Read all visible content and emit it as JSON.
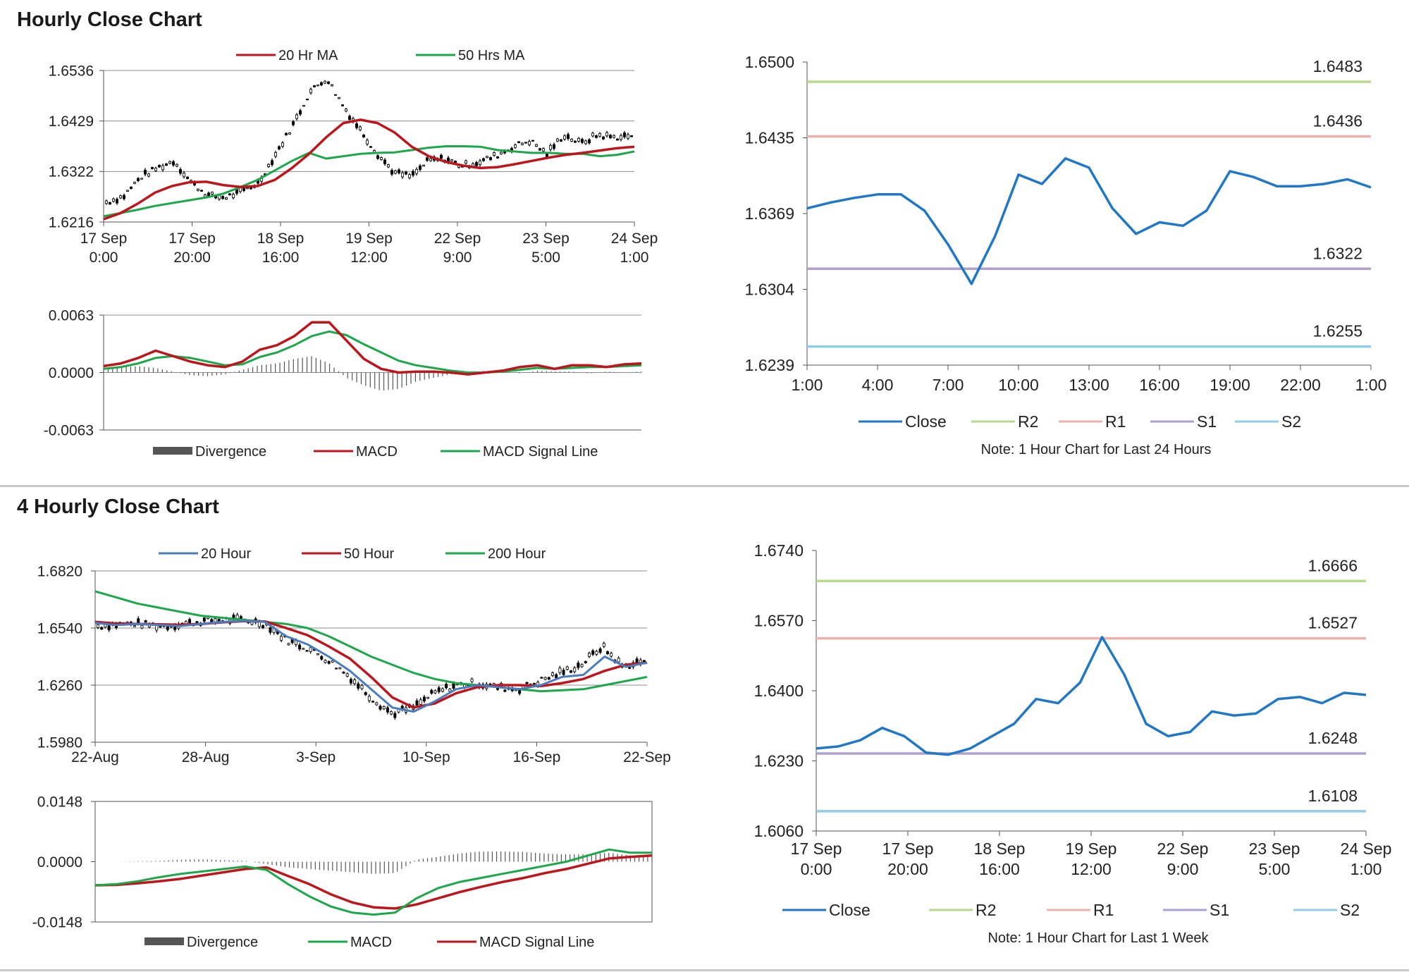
{
  "sections": [
    {
      "title": "Hourly Close Chart"
    },
    {
      "title": "4 Hourly Close Chart"
    }
  ],
  "chart_data": [
    {
      "id": "hourly-price",
      "type": "line",
      "subtype": "candlestick-with-moving-averages",
      "title": "",
      "ylim": [
        1.6216,
        1.6536
      ],
      "yticks": [
        "1.6536",
        "1.6429",
        "1.6322",
        "1.6216"
      ],
      "xtick_labels": [
        [
          "17 Sep",
          "0:00"
        ],
        [
          "17 Sep",
          "20:00"
        ],
        [
          "18 Sep",
          "16:00"
        ],
        [
          "19 Sep",
          "12:00"
        ],
        [
          "22 Sep",
          "9:00"
        ],
        [
          "23 Sep",
          "5:00"
        ],
        [
          "24 Sep",
          "1:00"
        ]
      ],
      "legend_position": "top",
      "grid": true,
      "series": [
        {
          "name": "20 Hr MA",
          "color": "#c0141c",
          "values": [
            1.6222,
            1.6235,
            1.6255,
            1.6278,
            1.6292,
            1.63,
            1.6301,
            1.6294,
            1.629,
            1.6292,
            1.6305,
            1.633,
            1.636,
            1.6395,
            1.6425,
            1.6432,
            1.6425,
            1.6405,
            1.6375,
            1.6355,
            1.6343,
            1.6335,
            1.633,
            1.6332,
            1.6338,
            1.6345,
            1.6352,
            1.6358,
            1.6362,
            1.6367,
            1.6372,
            1.6375
          ]
        },
        {
          "name": "50 Hrs MA",
          "color": "#1aa84a",
          "values": [
            1.6228,
            1.6235,
            1.6242,
            1.625,
            1.6256,
            1.6262,
            1.6268,
            1.6276,
            1.629,
            1.6305,
            1.6325,
            1.6345,
            1.6362,
            1.635,
            1.6355,
            1.636,
            1.6362,
            1.6363,
            1.6368,
            1.6373,
            1.6376,
            1.6376,
            1.6375,
            1.6368,
            1.6365,
            1.6362,
            1.6362,
            1.636,
            1.636,
            1.6355,
            1.6358,
            1.6365
          ]
        },
        {
          "name": "Close",
          "color": "#000000",
          "values": [
            1.6258,
            1.627,
            1.631,
            1.633,
            1.6345,
            1.63,
            1.6272,
            1.6268,
            1.628,
            1.63,
            1.636,
            1.642,
            1.649,
            1.652,
            1.646,
            1.641,
            1.636,
            1.632,
            1.6312,
            1.6345,
            1.635,
            1.6335,
            1.6343,
            1.6356,
            1.6375,
            1.6388,
            1.636,
            1.64,
            1.6382,
            1.64,
            1.6395,
            1.6398
          ]
        }
      ]
    },
    {
      "id": "hourly-macd",
      "type": "line",
      "subtype": "macd",
      "title": "",
      "ylim": [
        -0.0063,
        0.0063
      ],
      "yticks": [
        "0.0063",
        "0.0000",
        "-0.0063"
      ],
      "legend_position": "bottom",
      "grid": true,
      "series": [
        {
          "name": "Divergence",
          "color": "#555555",
          "values": [
            0.0003,
            0.0006,
            0.0007,
            0.0005,
            0.0001,
            -0.0003,
            -0.0004,
            -0.0002,
            0.0003,
            0.0008,
            0.001,
            0.0015,
            0.0018,
            0.001,
            -0.0006,
            -0.0014,
            -0.002,
            -0.0018,
            -0.001,
            -0.0006,
            -0.0002,
            0.0,
            0.0002,
            0.0001,
            -0.0001,
            0.0002,
            0.0001,
            0.0001,
            -0.0001,
            0.0001,
            0.0,
            0.0001
          ]
        },
        {
          "name": "MACD",
          "color": "#c0141c",
          "values": [
            0.0007,
            0.001,
            0.0016,
            0.0024,
            0.0018,
            0.0012,
            0.0008,
            0.0006,
            0.0012,
            0.0025,
            0.003,
            0.004,
            0.0055,
            0.0055,
            0.0035,
            0.0015,
            0.0004,
            0.0,
            0.0001,
            0.0001,
            0.0,
            -0.0002,
            0.0,
            0.0002,
            0.0006,
            0.0008,
            0.0004,
            0.0008,
            0.0008,
            0.0006,
            0.0009,
            0.001
          ]
        },
        {
          "name": "MACD Signal Line",
          "color": "#1aa84a",
          "values": [
            0.0004,
            0.0006,
            0.001,
            0.0016,
            0.0018,
            0.0016,
            0.0012,
            0.0008,
            0.0009,
            0.0017,
            0.0022,
            0.003,
            0.004,
            0.0045,
            0.0041,
            0.0031,
            0.0022,
            0.0013,
            0.0008,
            0.0005,
            0.0002,
            0.0,
            0.0,
            0.0001,
            0.0003,
            0.0005,
            0.0004,
            0.0005,
            0.0006,
            0.0006,
            0.0007,
            0.0008
          ]
        }
      ]
    },
    {
      "id": "hourly-close-24h",
      "type": "line",
      "title": "",
      "ylim": [
        1.6239,
        1.65
      ],
      "yticks": [
        "1.6500",
        "1.6435",
        "1.6369",
        "1.6304",
        "1.6239"
      ],
      "x": [
        "1:00",
        "2:00",
        "3:00",
        "4:00",
        "5:00",
        "6:00",
        "7:00",
        "8:00",
        "9:00",
        "10:00",
        "11:00",
        "12:00",
        "13:00",
        "14:00",
        "15:00",
        "16:00",
        "17:00",
        "18:00",
        "19:00",
        "20:00",
        "21:00",
        "22:00",
        "23:00",
        "0:00",
        "1:00"
      ],
      "xtick_labels": [
        "1:00",
        "4:00",
        "7:00",
        "10:00",
        "13:00",
        "16:00",
        "19:00",
        "22:00",
        "1:00"
      ],
      "legend_position": "bottom",
      "grid": false,
      "series": [
        {
          "name": "Close",
          "color": "#1f77c8",
          "values": [
            1.6374,
            1.6379,
            1.6383,
            1.6386,
            1.6386,
            1.6372,
            1.6343,
            1.6309,
            1.635,
            1.6403,
            1.6395,
            1.6417,
            1.6409,
            1.6374,
            1.6352,
            1.6362,
            1.6359,
            1.6372,
            1.6406,
            1.6401,
            1.6393,
            1.6393,
            1.6395,
            1.6399,
            1.6392
          ]
        },
        {
          "name": "R2",
          "color": "#b9d98c",
          "level": 1.6483,
          "label": "1.6483"
        },
        {
          "name": "R1",
          "color": "#eeb0aa",
          "level": 1.6436,
          "label": "1.6436"
        },
        {
          "name": "S1",
          "color": "#b0a0d0",
          "level": 1.6322,
          "label": "1.6322"
        },
        {
          "name": "S2",
          "color": "#90cde6",
          "level": 1.6255,
          "label": "1.6255"
        }
      ],
      "note": "Note: 1 Hour Chart for Last 24 Hours"
    },
    {
      "id": "four-hourly-price",
      "type": "line",
      "subtype": "candlestick-with-moving-averages",
      "title": "",
      "ylim": [
        1.598,
        1.682
      ],
      "yticks": [
        "1.6820",
        "1.6540",
        "1.6260",
        "1.5980"
      ],
      "xtick_labels": [
        "22-Aug",
        "28-Aug",
        "3-Sep",
        "10-Sep",
        "16-Sep",
        "22-Sep"
      ],
      "legend_position": "top",
      "grid": true,
      "series": [
        {
          "name": "20 Hour",
          "color": "#4a7cc0",
          "values": [
            1.6565,
            1.6555,
            1.656,
            1.6555,
            1.655,
            1.656,
            1.657,
            1.6575,
            1.657,
            1.65,
            1.646,
            1.64,
            1.633,
            1.624,
            1.615,
            1.613,
            1.618,
            1.624,
            1.626,
            1.625,
            1.624,
            1.626,
            1.63,
            1.631,
            1.64,
            1.635,
            1.637
          ]
        },
        {
          "name": "50 Hour",
          "color": "#c0141c",
          "values": [
            1.657,
            1.6562,
            1.656,
            1.6558,
            1.6556,
            1.656,
            1.6568,
            1.6574,
            1.6572,
            1.654,
            1.6505,
            1.645,
            1.639,
            1.63,
            1.62,
            1.615,
            1.617,
            1.622,
            1.625,
            1.626,
            1.626,
            1.6255,
            1.627,
            1.629,
            1.633,
            1.636,
            1.637
          ]
        },
        {
          "name": "200 Hour",
          "color": "#1aa84a",
          "values": [
            1.672,
            1.669,
            1.666,
            1.664,
            1.662,
            1.66,
            1.659,
            1.658,
            1.657,
            1.656,
            1.654,
            1.65,
            1.645,
            1.64,
            1.636,
            1.632,
            1.629,
            1.627,
            1.626,
            1.625,
            1.624,
            1.623,
            1.6235,
            1.624,
            1.626,
            1.628,
            1.63
          ]
        },
        {
          "name": "Close",
          "color": "#000000",
          "values": [
            1.655,
            1.656,
            1.656,
            1.655,
            1.656,
            1.6575,
            1.658,
            1.658,
            1.656,
            1.648,
            1.644,
            1.638,
            1.63,
            1.62,
            1.612,
            1.615,
            1.622,
            1.626,
            1.627,
            1.625,
            1.624,
            1.628,
            1.632,
            1.636,
            1.645,
            1.635,
            1.638
          ]
        }
      ]
    },
    {
      "id": "four-hourly-macd",
      "type": "line",
      "subtype": "macd",
      "title": "",
      "ylim": [
        -0.0148,
        0.0148
      ],
      "yticks": [
        "0.0148",
        "0.0000",
        "-0.0148"
      ],
      "legend_position": "bottom",
      "grid": true,
      "series": [
        {
          "name": "Divergence",
          "color": "#555555",
          "values": [
            0.0,
            0.0,
            0.0001,
            0.0002,
            0.0005,
            0.0006,
            0.0004,
            0.0002,
            -0.0006,
            -0.0014,
            -0.0018,
            -0.0022,
            -0.0026,
            -0.003,
            -0.0028,
            0.0005,
            0.0012,
            0.002,
            0.0025,
            0.0025,
            0.0024,
            0.002,
            0.0018,
            0.0018,
            0.0022,
            0.0015,
            0.0012
          ]
        },
        {
          "name": "MACD",
          "color": "#1aa84a",
          "values": [
            -0.0058,
            -0.0055,
            -0.0048,
            -0.0038,
            -0.003,
            -0.0024,
            -0.0018,
            -0.0012,
            -0.002,
            -0.0055,
            -0.0085,
            -0.011,
            -0.0125,
            -0.013,
            -0.0125,
            -0.009,
            -0.0065,
            -0.005,
            -0.004,
            -0.003,
            -0.002,
            -0.001,
            0.0,
            0.0015,
            0.003,
            0.0022,
            0.0022
          ]
        },
        {
          "name": "MACD Signal Line",
          "color": "#c0141c",
          "values": [
            -0.0058,
            -0.0057,
            -0.0053,
            -0.0048,
            -0.0042,
            -0.0034,
            -0.0026,
            -0.0018,
            -0.0014,
            -0.0035,
            -0.0055,
            -0.008,
            -0.01,
            -0.0112,
            -0.0115,
            -0.0105,
            -0.009,
            -0.0075,
            -0.0062,
            -0.005,
            -0.004,
            -0.0028,
            -0.0018,
            -0.0005,
            0.0008,
            0.0012,
            0.0015
          ]
        }
      ]
    },
    {
      "id": "weekly-close",
      "type": "line",
      "title": "",
      "ylim": [
        1.606,
        1.674
      ],
      "yticks": [
        "1.6740",
        "1.6570",
        "1.6400",
        "1.6230",
        "1.6060"
      ],
      "xtick_labels": [
        [
          "17 Sep",
          "0:00"
        ],
        [
          "17 Sep",
          "20:00"
        ],
        [
          "18 Sep",
          "16:00"
        ],
        [
          "19 Sep",
          "12:00"
        ],
        [
          "22 Sep",
          "9:00"
        ],
        [
          "23 Sep",
          "5:00"
        ],
        [
          "24 Sep",
          "1:00"
        ]
      ],
      "legend_position": "bottom",
      "grid": false,
      "series": [
        {
          "name": "Close",
          "color": "#1f77c8",
          "values": [
            1.626,
            1.6265,
            1.628,
            1.631,
            1.629,
            1.625,
            1.6245,
            1.626,
            1.629,
            1.632,
            1.638,
            1.637,
            1.642,
            1.653,
            1.644,
            1.632,
            1.629,
            1.63,
            1.635,
            1.634,
            1.6345,
            1.638,
            1.6385,
            1.637,
            1.6395,
            1.639
          ]
        },
        {
          "name": "R2",
          "color": "#b9d98c",
          "level": 1.6666,
          "label": "1.6666"
        },
        {
          "name": "R1",
          "color": "#eeb0aa",
          "level": 1.6527,
          "label": "1.6527"
        },
        {
          "name": "S1",
          "color": "#b0a0d0",
          "level": 1.6248,
          "label": "1.6248"
        },
        {
          "name": "S2",
          "color": "#90cde6",
          "level": 1.6108,
          "label": "1.6108"
        }
      ],
      "note": "Note: 1 Hour Chart for Last 1 Week"
    }
  ]
}
